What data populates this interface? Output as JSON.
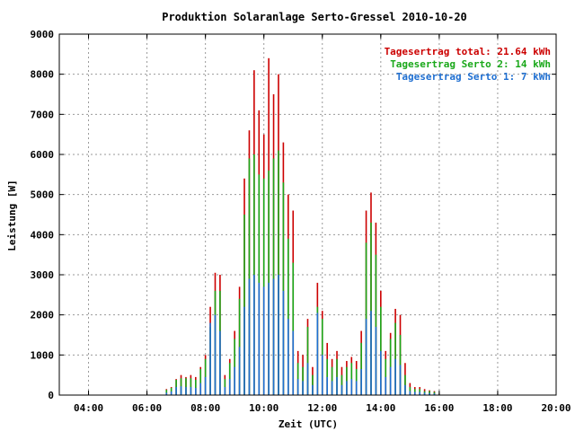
{
  "chart_data": {
    "type": "bar",
    "title": "Produktion Solaranlage Serto-Gressel 2010-10-20",
    "xlabel": "Zeit (UTC)",
    "ylabel": "Leistung [W]",
    "xlim": [
      "03:00",
      "20:00"
    ],
    "ylim": [
      0,
      9000
    ],
    "grid": true,
    "legend_position": "top-right",
    "x_ticks": [
      "04:00",
      "06:00",
      "08:00",
      "10:00",
      "12:00",
      "14:00",
      "16:00",
      "18:00",
      "20:00"
    ],
    "y_ticks": [
      "0",
      "1000",
      "2000",
      "3000",
      "4000",
      "5000",
      "6000",
      "7000",
      "8000",
      "9000"
    ],
    "legend": [
      {
        "label": "Tagesertrag total: 21.64 kWh",
        "color": "#cc0000"
      },
      {
        "label": "Tagesertrag Serto 2: 14 kWh",
        "color": "#1aa81a"
      },
      {
        "label": "Tagesertrag Serto 1: 7 kWh",
        "color": "#1f6fd1"
      }
    ],
    "x": [
      "06:40",
      "06:50",
      "07:00",
      "07:10",
      "07:20",
      "07:30",
      "07:40",
      "07:50",
      "08:00",
      "08:10",
      "08:20",
      "08:30",
      "08:40",
      "08:50",
      "09:00",
      "09:10",
      "09:20",
      "09:30",
      "09:40",
      "09:50",
      "10:00",
      "10:10",
      "10:20",
      "10:30",
      "10:40",
      "10:50",
      "11:00",
      "11:10",
      "11:20",
      "11:30",
      "11:40",
      "11:50",
      "12:00",
      "12:10",
      "12:20",
      "12:30",
      "12:40",
      "12:50",
      "13:00",
      "13:10",
      "13:20",
      "13:30",
      "13:40",
      "13:50",
      "14:00",
      "14:10",
      "14:20",
      "14:30",
      "14:40",
      "14:50",
      "15:00",
      "15:10",
      "15:20",
      "15:30",
      "15:40",
      "15:50"
    ],
    "series": [
      {
        "name": "total",
        "color": "#cc0000",
        "values": [
          150,
          200,
          400,
          500,
          450,
          500,
          450,
          700,
          1000,
          2200,
          3050,
          3000,
          500,
          900,
          1600,
          2700,
          5400,
          6600,
          8100,
          7100,
          6500,
          8400,
          7500,
          8000,
          6300,
          5000,
          4600,
          1100,
          1000,
          1900,
          700,
          2800,
          2100,
          1300,
          900,
          1100,
          700,
          850,
          950,
          850,
          1600,
          4600,
          5050,
          4300,
          2600,
          1100,
          1550,
          2150,
          2000,
          800,
          300,
          200,
          200,
          150,
          120,
          100
        ]
      },
      {
        "name": "Serto 2",
        "color": "#1aa81a",
        "values": [
          130,
          180,
          380,
          420,
          420,
          420,
          380,
          650,
          900,
          1700,
          2600,
          2600,
          400,
          800,
          1400,
          2400,
          4500,
          5900,
          6000,
          5500,
          5400,
          5600,
          5900,
          6100,
          5300,
          3900,
          3300,
          800,
          700,
          1700,
          500,
          2200,
          1900,
          900,
          700,
          900,
          500,
          700,
          800,
          650,
          1300,
          3800,
          4300,
          3500,
          2200,
          900,
          1400,
          1800,
          1500,
          500,
          200,
          150,
          150,
          100,
          100,
          80
        ]
      },
      {
        "name": "Serto 1",
        "color": "#1f6fd1",
        "values": [
          60,
          90,
          200,
          220,
          200,
          200,
          180,
          300,
          450,
          1800,
          2000,
          1600,
          200,
          400,
          700,
          1200,
          2200,
          2900,
          3000,
          2800,
          2700,
          2800,
          2900,
          3000,
          2600,
          1900,
          1600,
          400,
          350,
          800,
          250,
          2050,
          1000,
          450,
          350,
          450,
          250,
          350,
          400,
          350,
          650,
          1900,
          2100,
          1700,
          1100,
          450,
          700,
          900,
          750,
          250,
          100,
          80,
          80,
          60,
          50,
          40
        ]
      }
    ]
  }
}
